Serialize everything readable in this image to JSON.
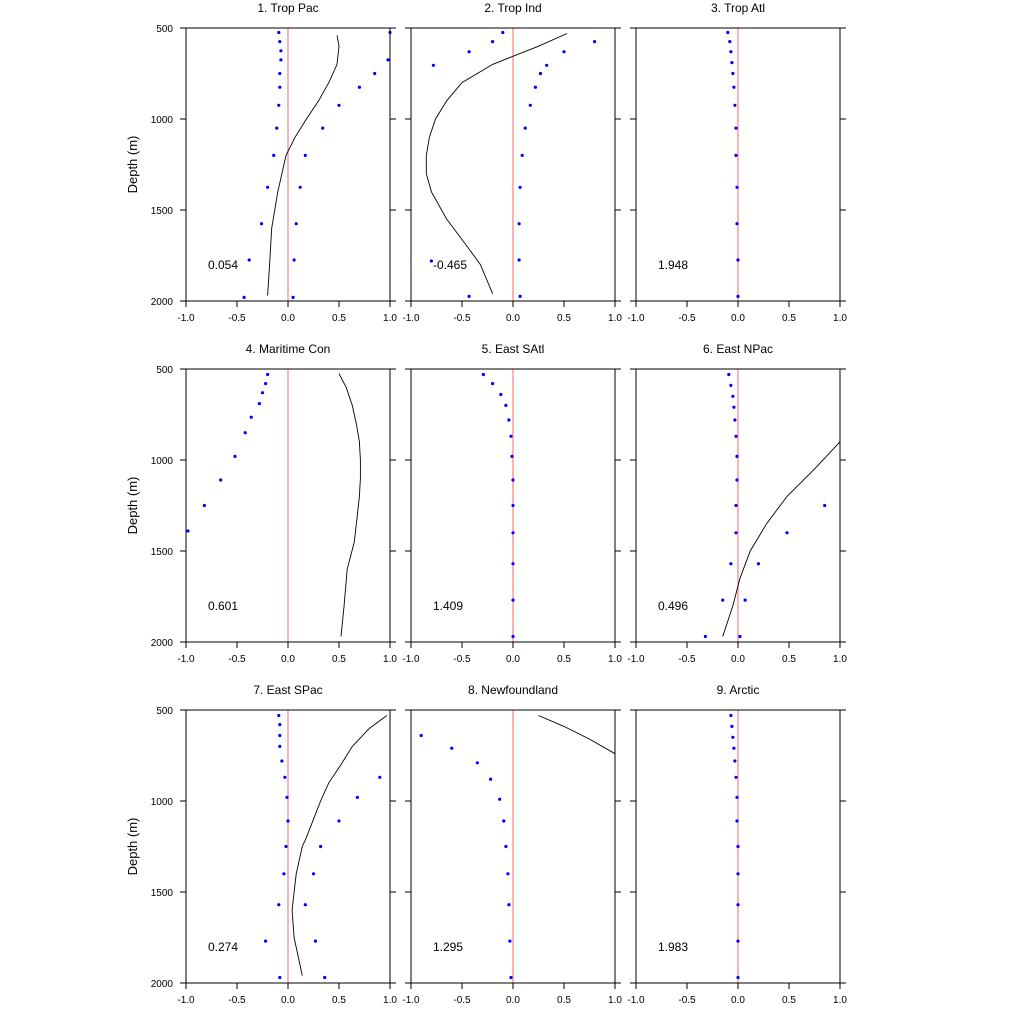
{
  "figure": {
    "ylabel": "Depth (m)"
  },
  "colors": {
    "zero_line": "#ff7f7f",
    "dots": "#0000ff",
    "curve": "#000000",
    "frame": "#000000"
  },
  "chart_data": [
    {
      "type": "scatter",
      "title": "1. Trop Pac",
      "ylabel": "Depth (m)",
      "xlim": [
        -1.0,
        1.0
      ],
      "ylim": [
        2000,
        500
      ],
      "xticks": [
        "-1.0",
        "-0.5",
        "0.0",
        "0.5",
        "1.0"
      ],
      "yticks": [
        "500",
        "1000",
        "1500",
        "2000"
      ],
      "stat_label": "0.054",
      "dots": [
        [
          -0.09,
          525
        ],
        [
          -0.08,
          575
        ],
        [
          -0.07,
          625
        ],
        [
          -0.07,
          675
        ],
        [
          -0.08,
          750
        ],
        [
          -0.08,
          825
        ],
        [
          -0.09,
          925
        ],
        [
          -0.11,
          1050
        ],
        [
          -0.14,
          1200
        ],
        [
          -0.2,
          1375
        ],
        [
          -0.26,
          1575
        ],
        [
          -0.38,
          1775
        ],
        [
          -0.43,
          1980
        ],
        [
          1.0,
          525
        ],
        [
          0.98,
          675
        ],
        [
          0.85,
          750
        ],
        [
          0.7,
          825
        ],
        [
          0.5,
          925
        ],
        [
          0.34,
          1050
        ],
        [
          0.17,
          1200
        ],
        [
          0.12,
          1375
        ],
        [
          0.08,
          1575
        ],
        [
          0.06,
          1775
        ],
        [
          0.05,
          1980
        ]
      ],
      "curve": [
        [
          0.48,
          540
        ],
        [
          0.5,
          600
        ],
        [
          0.48,
          700
        ],
        [
          0.4,
          800
        ],
        [
          0.3,
          900
        ],
        [
          0.18,
          1000
        ],
        [
          0.07,
          1100
        ],
        [
          -0.02,
          1200
        ],
        [
          -0.1,
          1400
        ],
        [
          -0.16,
          1600
        ],
        [
          -0.18,
          1800
        ],
        [
          -0.2,
          1970
        ]
      ]
    },
    {
      "type": "scatter",
      "title": "2. Trop Ind",
      "ylabel": "",
      "xlim": [
        -1.0,
        1.0
      ],
      "ylim": [
        2000,
        500
      ],
      "xticks": [
        "-1.0",
        "-0.5",
        "0.0",
        "0.5",
        "1.0"
      ],
      "yticks": [],
      "stat_label": "-0.465",
      "dots": [
        [
          -0.1,
          525
        ],
        [
          -0.2,
          575
        ],
        [
          -0.43,
          630
        ],
        [
          -0.78,
          705
        ],
        [
          -0.8,
          1780
        ],
        [
          -0.43,
          1975
        ],
        [
          0.8,
          575
        ],
        [
          0.5,
          630
        ],
        [
          0.33,
          705
        ],
        [
          0.27,
          750
        ],
        [
          0.22,
          825
        ],
        [
          0.17,
          925
        ],
        [
          0.12,
          1050
        ],
        [
          0.09,
          1200
        ],
        [
          0.07,
          1375
        ],
        [
          0.06,
          1575
        ],
        [
          0.06,
          1775
        ],
        [
          0.07,
          1975
        ]
      ],
      "curve": [
        [
          0.53,
          530
        ],
        [
          0.25,
          600
        ],
        [
          -0.2,
          700
        ],
        [
          -0.5,
          800
        ],
        [
          -0.65,
          900
        ],
        [
          -0.76,
          1000
        ],
        [
          -0.82,
          1100
        ],
        [
          -0.85,
          1200
        ],
        [
          -0.85,
          1300
        ],
        [
          -0.8,
          1400
        ],
        [
          -0.65,
          1550
        ],
        [
          -0.45,
          1700
        ],
        [
          -0.32,
          1800
        ],
        [
          -0.2,
          1960
        ]
      ]
    },
    {
      "type": "scatter",
      "title": "3. Trop Atl",
      "ylabel": "",
      "xlim": [
        -1.0,
        1.0
      ],
      "ylim": [
        2000,
        500
      ],
      "xticks": [
        "-1.0",
        "-0.5",
        "0.0",
        "0.5",
        "1.0"
      ],
      "yticks": [],
      "stat_label": "1.948",
      "dots": [
        [
          -0.1,
          525
        ],
        [
          -0.08,
          575
        ],
        [
          -0.07,
          630
        ],
        [
          -0.06,
          690
        ],
        [
          -0.05,
          750
        ],
        [
          -0.04,
          825
        ],
        [
          -0.03,
          925
        ],
        [
          -0.02,
          1050
        ],
        [
          -0.02,
          1200
        ],
        [
          -0.01,
          1375
        ],
        [
          -0.01,
          1575
        ],
        [
          0.0,
          1775
        ],
        [
          0.0,
          1975
        ]
      ],
      "curve": []
    },
    {
      "type": "scatter",
      "title": "4. Maritime Con",
      "ylabel": "Depth (m)",
      "xlim": [
        -1.0,
        1.0
      ],
      "ylim": [
        2000,
        500
      ],
      "xticks": [
        "-1.0",
        "-0.5",
        "0.0",
        "0.5",
        "1.0"
      ],
      "yticks": [
        "500",
        "1000",
        "1500",
        "2000"
      ],
      "stat_label": "0.601",
      "dots": [
        [
          -0.2,
          530
        ],
        [
          -0.22,
          580
        ],
        [
          -0.25,
          630
        ],
        [
          -0.28,
          690
        ],
        [
          -0.36,
          765
        ],
        [
          -0.42,
          850
        ],
        [
          -0.52,
          980
        ],
        [
          -0.66,
          1110
        ],
        [
          -0.82,
          1250
        ],
        [
          -0.98,
          1390
        ]
      ],
      "curve": [
        [
          0.5,
          525
        ],
        [
          0.57,
          600
        ],
        [
          0.63,
          700
        ],
        [
          0.67,
          800
        ],
        [
          0.7,
          900
        ],
        [
          0.71,
          1000
        ],
        [
          0.71,
          1100
        ],
        [
          0.7,
          1200
        ],
        [
          0.68,
          1300
        ],
        [
          0.65,
          1450
        ],
        [
          0.58,
          1600
        ],
        [
          0.55,
          1800
        ],
        [
          0.52,
          1970
        ]
      ]
    },
    {
      "type": "scatter",
      "title": "5. East SAtl",
      "ylabel": "",
      "xlim": [
        -1.0,
        1.0
      ],
      "ylim": [
        2000,
        500
      ],
      "xticks": [
        "-1.0",
        "-0.5",
        "0.0",
        "0.5",
        "1.0"
      ],
      "yticks": [],
      "stat_label": "1.409",
      "dots": [
        [
          -0.29,
          530
        ],
        [
          -0.2,
          580
        ],
        [
          -0.12,
          640
        ],
        [
          -0.07,
          700
        ],
        [
          -0.04,
          780
        ],
        [
          -0.02,
          870
        ],
        [
          -0.01,
          980
        ],
        [
          0.0,
          1110
        ],
        [
          0.0,
          1250
        ],
        [
          0.0,
          1400
        ],
        [
          0.0,
          1570
        ],
        [
          0.0,
          1770
        ],
        [
          0.0,
          1970
        ]
      ],
      "curve": []
    },
    {
      "type": "scatter",
      "title": "6. East NPac",
      "ylabel": "",
      "xlim": [
        -1.0,
        1.0
      ],
      "ylim": [
        2000,
        500
      ],
      "xticks": [
        "-1.0",
        "-0.5",
        "0.0",
        "0.5",
        "1.0"
      ],
      "yticks": [],
      "stat_label": "0.496",
      "dots": [
        [
          -0.09,
          530
        ],
        [
          -0.07,
          590
        ],
        [
          -0.05,
          650
        ],
        [
          -0.04,
          710
        ],
        [
          -0.03,
          780
        ],
        [
          -0.02,
          870
        ],
        [
          -0.01,
          980
        ],
        [
          -0.01,
          1110
        ],
        [
          -0.02,
          1250
        ],
        [
          -0.02,
          1400
        ],
        [
          -0.07,
          1570
        ],
        [
          -0.15,
          1770
        ],
        [
          -0.32,
          1970
        ],
        [
          0.85,
          1250
        ],
        [
          0.48,
          1400
        ],
        [
          0.2,
          1570
        ],
        [
          0.07,
          1770
        ],
        [
          0.02,
          1970
        ]
      ],
      "curve": [
        [
          1.0,
          900
        ],
        [
          0.75,
          1050
        ],
        [
          0.48,
          1200
        ],
        [
          0.28,
          1350
        ],
        [
          0.12,
          1500
        ],
        [
          0.02,
          1650
        ],
        [
          -0.05,
          1800
        ],
        [
          -0.15,
          1970
        ]
      ]
    },
    {
      "type": "scatter",
      "title": "7. East SPac",
      "ylabel": "Depth (m)",
      "xlim": [
        -1.0,
        1.0
      ],
      "ylim": [
        2000,
        500
      ],
      "xticks": [
        "-1.0",
        "-0.5",
        "0.0",
        "0.5",
        "1.0"
      ],
      "yticks": [
        "500",
        "1000",
        "1500",
        "2000"
      ],
      "stat_label": "0.274",
      "dots": [
        [
          -0.09,
          530
        ],
        [
          -0.08,
          580
        ],
        [
          -0.08,
          640
        ],
        [
          -0.08,
          700
        ],
        [
          -0.06,
          780
        ],
        [
          -0.03,
          870
        ],
        [
          -0.01,
          980
        ],
        [
          0.0,
          1110
        ],
        [
          -0.02,
          1250
        ],
        [
          -0.04,
          1400
        ],
        [
          -0.09,
          1570
        ],
        [
          -0.22,
          1770
        ],
        [
          -0.08,
          1970
        ],
        [
          0.9,
          870
        ],
        [
          0.68,
          980
        ],
        [
          0.5,
          1110
        ],
        [
          0.32,
          1250
        ],
        [
          0.25,
          1400
        ],
        [
          0.17,
          1570
        ],
        [
          0.27,
          1770
        ],
        [
          0.36,
          1970
        ]
      ],
      "curve": [
        [
          0.97,
          530
        ],
        [
          0.8,
          600
        ],
        [
          0.63,
          700
        ],
        [
          0.52,
          800
        ],
        [
          0.4,
          900
        ],
        [
          0.32,
          1000
        ],
        [
          0.25,
          1100
        ],
        [
          0.18,
          1200
        ],
        [
          0.14,
          1250
        ],
        [
          0.08,
          1400
        ],
        [
          0.04,
          1600
        ],
        [
          0.06,
          1750
        ],
        [
          0.14,
          1960
        ]
      ]
    },
    {
      "type": "scatter",
      "title": "8. Newfoundland",
      "ylabel": "",
      "xlim": [
        -1.0,
        1.0
      ],
      "ylim": [
        2000,
        500
      ],
      "xticks": [
        "-1.0",
        "-0.5",
        "0.0",
        "0.5",
        "1.0"
      ],
      "yticks": [],
      "stat_label": "1.295",
      "dots": [
        [
          -0.9,
          640
        ],
        [
          -0.6,
          710
        ],
        [
          -0.35,
          790
        ],
        [
          -0.22,
          880
        ],
        [
          -0.13,
          990
        ],
        [
          -0.09,
          1110
        ],
        [
          -0.07,
          1250
        ],
        [
          -0.05,
          1400
        ],
        [
          -0.04,
          1570
        ],
        [
          -0.03,
          1770
        ],
        [
          -0.02,
          1970
        ]
      ],
      "curve": [
        [
          0.25,
          530
        ],
        [
          0.5,
          590
        ],
        [
          0.75,
          660
        ],
        [
          1.0,
          740
        ]
      ]
    },
    {
      "type": "scatter",
      "title": "9. Arctic",
      "ylabel": "",
      "xlim": [
        -1.0,
        1.0
      ],
      "ylim": [
        2000,
        500
      ],
      "xticks": [
        "-1.0",
        "-0.5",
        "0.0",
        "0.5",
        "1.0"
      ],
      "yticks": [],
      "stat_label": "1.983",
      "dots": [
        [
          -0.07,
          530
        ],
        [
          -0.06,
          590
        ],
        [
          -0.05,
          650
        ],
        [
          -0.04,
          710
        ],
        [
          -0.03,
          780
        ],
        [
          -0.02,
          870
        ],
        [
          -0.01,
          980
        ],
        [
          -0.01,
          1110
        ],
        [
          0.0,
          1250
        ],
        [
          0.0,
          1400
        ],
        [
          0.0,
          1570
        ],
        [
          0.0,
          1770
        ],
        [
          0.0,
          1970
        ]
      ],
      "curve": []
    }
  ]
}
